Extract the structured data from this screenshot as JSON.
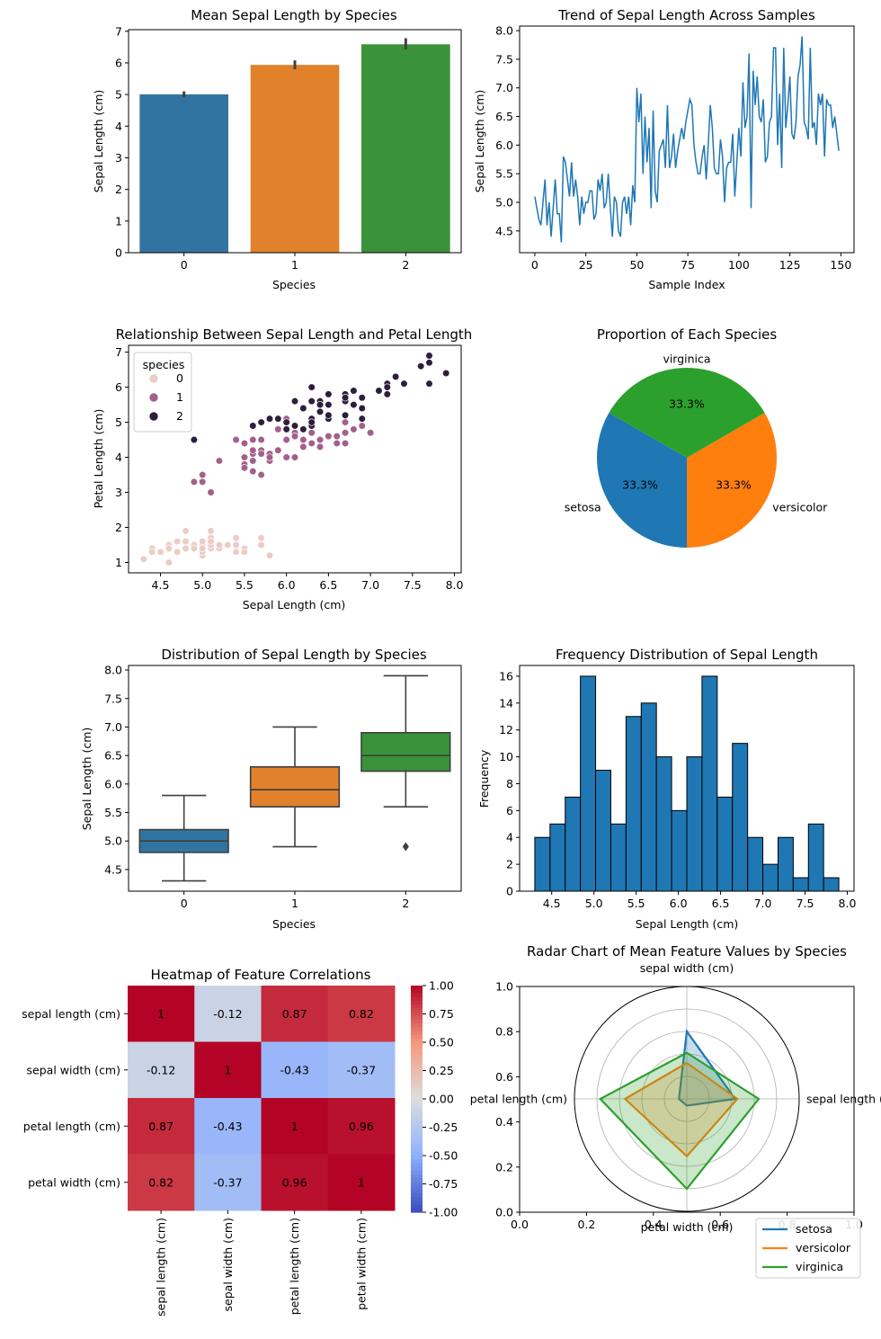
{
  "figure": {
    "colors": {
      "blue": "#1f77b4",
      "orange": "#ff7f0e",
      "green": "#2ca02c",
      "sea_blue": "#3274a1",
      "sea_orange": "#e1812c",
      "sea_green": "#3a923a"
    }
  },
  "chart_data": [
    {
      "id": "bar",
      "type": "bar",
      "title": "Mean Sepal Length by Species",
      "xlabel": "Species",
      "ylabel": "Sepal Length (cm)",
      "categories": [
        "0",
        "1",
        "2"
      ],
      "values": [
        5.006,
        5.936,
        6.588
      ],
      "error_low": [
        4.91,
        5.8,
        6.42
      ],
      "error_high": [
        5.1,
        6.08,
        6.78
      ],
      "ylim": [
        0,
        7.05
      ],
      "yticks": [
        0,
        1,
        2,
        3,
        4,
        5,
        6,
        7
      ]
    },
    {
      "id": "line",
      "type": "line",
      "title": "Trend of Sepal Length Across Samples",
      "xlabel": "Sample Index",
      "ylabel": "Sepal Length (cm)",
      "values": [
        5.1,
        4.9,
        4.7,
        4.6,
        5.0,
        5.4,
        4.6,
        5.0,
        4.4,
        4.9,
        5.4,
        4.8,
        4.8,
        4.3,
        5.8,
        5.7,
        5.4,
        5.1,
        5.7,
        5.1,
        5.4,
        5.1,
        4.6,
        5.1,
        4.8,
        5.0,
        5.0,
        5.2,
        5.2,
        4.7,
        4.8,
        5.4,
        5.2,
        5.5,
        4.9,
        5.0,
        5.5,
        4.9,
        4.4,
        5.1,
        5.0,
        4.5,
        4.4,
        5.0,
        5.1,
        4.8,
        5.1,
        4.6,
        5.3,
        5.0,
        7.0,
        6.4,
        6.9,
        5.5,
        6.5,
        5.7,
        6.3,
        4.9,
        6.6,
        5.2,
        5.0,
        5.9,
        6.0,
        6.1,
        5.6,
        6.7,
        5.6,
        5.8,
        6.2,
        5.6,
        5.9,
        6.1,
        6.3,
        6.1,
        6.4,
        6.6,
        6.8,
        6.7,
        6.0,
        5.7,
        5.5,
        5.5,
        5.8,
        6.0,
        5.4,
        6.0,
        6.7,
        6.3,
        5.6,
        5.5,
        5.5,
        6.1,
        5.8,
        5.0,
        5.6,
        5.7,
        5.7,
        6.2,
        5.1,
        5.7,
        6.3,
        5.8,
        7.1,
        6.3,
        6.5,
        7.6,
        4.9,
        7.3,
        6.7,
        7.2,
        6.5,
        6.4,
        6.8,
        5.7,
        5.8,
        6.4,
        6.5,
        7.7,
        7.7,
        6.0,
        6.9,
        5.6,
        7.7,
        6.3,
        6.7,
        7.2,
        6.2,
        6.1,
        6.4,
        7.2,
        7.4,
        7.9,
        6.4,
        6.3,
        6.1,
        7.7,
        6.3,
        6.4,
        6.0,
        6.9,
        6.7,
        6.9,
        5.8,
        6.8,
        6.7,
        6.7,
        6.3,
        6.5,
        6.2,
        5.9
      ],
      "xlim": [
        -7.45,
        156.45
      ],
      "ylim": [
        4.12,
        8.08
      ],
      "xticks": [
        0,
        25,
        50,
        75,
        100,
        125,
        150
      ],
      "yticks": [
        "4.5",
        "5.0",
        "5.5",
        "6.0",
        "6.5",
        "7.0",
        "7.5",
        "8.0"
      ]
    },
    {
      "id": "scatter",
      "type": "scatter",
      "title": "Relationship Between Sepal Length and Petal Length",
      "xlabel": "Sepal Length (cm)",
      "ylabel": "Petal Length (cm)",
      "legend_title": "species",
      "legend_placement": "top-left",
      "series": [
        {
          "name": "0",
          "color": "#ebcdc6",
          "points": [
            [
              5.1,
              1.4
            ],
            [
              4.9,
              1.4
            ],
            [
              4.7,
              1.3
            ],
            [
              4.6,
              1.5
            ],
            [
              5.0,
              1.4
            ],
            [
              5.4,
              1.7
            ],
            [
              4.6,
              1.4
            ],
            [
              5.0,
              1.5
            ],
            [
              4.4,
              1.4
            ],
            [
              4.9,
              1.5
            ],
            [
              5.4,
              1.5
            ],
            [
              4.8,
              1.6
            ],
            [
              4.8,
              1.4
            ],
            [
              4.3,
              1.1
            ],
            [
              5.8,
              1.2
            ],
            [
              5.7,
              1.5
            ],
            [
              5.4,
              1.3
            ],
            [
              5.1,
              1.4
            ],
            [
              5.7,
              1.7
            ],
            [
              5.1,
              1.5
            ],
            [
              5.4,
              1.7
            ],
            [
              5.1,
              1.5
            ],
            [
              4.6,
              1.0
            ],
            [
              5.1,
              1.7
            ],
            [
              4.8,
              1.9
            ],
            [
              5.0,
              1.6
            ],
            [
              5.0,
              1.6
            ],
            [
              5.2,
              1.5
            ],
            [
              5.2,
              1.4
            ],
            [
              4.7,
              1.6
            ],
            [
              4.8,
              1.6
            ],
            [
              5.4,
              1.5
            ],
            [
              5.2,
              1.5
            ],
            [
              5.5,
              1.4
            ],
            [
              4.9,
              1.5
            ],
            [
              5.0,
              1.2
            ],
            [
              5.5,
              1.3
            ],
            [
              4.9,
              1.4
            ],
            [
              4.4,
              1.3
            ],
            [
              5.1,
              1.5
            ],
            [
              5.0,
              1.3
            ],
            [
              4.5,
              1.3
            ],
            [
              4.4,
              1.3
            ],
            [
              5.0,
              1.6
            ],
            [
              5.1,
              1.9
            ],
            [
              4.8,
              1.4
            ],
            [
              5.1,
              1.6
            ],
            [
              4.6,
              1.4
            ],
            [
              5.3,
              1.5
            ],
            [
              5.0,
              1.4
            ]
          ]
        },
        {
          "name": "1",
          "color": "#a3608c",
          "points": [
            [
              7.0,
              4.7
            ],
            [
              6.4,
              4.5
            ],
            [
              6.9,
              4.9
            ],
            [
              5.5,
              4.0
            ],
            [
              6.5,
              4.6
            ],
            [
              5.7,
              4.5
            ],
            [
              6.3,
              4.7
            ],
            [
              4.9,
              3.3
            ],
            [
              6.6,
              4.6
            ],
            [
              5.2,
              3.9
            ],
            [
              5.0,
              3.5
            ],
            [
              5.9,
              4.2
            ],
            [
              6.0,
              4.0
            ],
            [
              6.1,
              4.7
            ],
            [
              5.6,
              3.6
            ],
            [
              6.7,
              4.4
            ],
            [
              5.6,
              4.5
            ],
            [
              5.8,
              4.1
            ],
            [
              6.2,
              4.5
            ],
            [
              5.6,
              3.9
            ],
            [
              5.9,
              4.8
            ],
            [
              6.1,
              4.0
            ],
            [
              6.3,
              4.9
            ],
            [
              6.1,
              4.7
            ],
            [
              6.4,
              4.3
            ],
            [
              6.6,
              4.4
            ],
            [
              6.8,
              4.8
            ],
            [
              6.7,
              5.0
            ],
            [
              6.0,
              4.5
            ],
            [
              5.7,
              3.5
            ],
            [
              5.5,
              3.8
            ],
            [
              5.5,
              3.7
            ],
            [
              5.8,
              3.9
            ],
            [
              6.0,
              5.1
            ],
            [
              5.4,
              4.5
            ],
            [
              6.0,
              4.5
            ],
            [
              6.7,
              4.7
            ],
            [
              6.3,
              4.4
            ],
            [
              5.6,
              4.1
            ],
            [
              5.5,
              4.0
            ],
            [
              5.5,
              4.4
            ],
            [
              6.1,
              4.6
            ],
            [
              5.8,
              4.0
            ],
            [
              5.0,
              3.3
            ],
            [
              5.6,
              4.2
            ],
            [
              5.7,
              4.2
            ],
            [
              5.7,
              4.2
            ],
            [
              6.2,
              4.3
            ],
            [
              5.1,
              3.0
            ],
            [
              5.7,
              4.1
            ]
          ]
        },
        {
          "name": "2",
          "color": "#2d1e3e",
          "points": [
            [
              6.3,
              6.0
            ],
            [
              5.8,
              5.1
            ],
            [
              7.1,
              5.9
            ],
            [
              6.3,
              5.6
            ],
            [
              6.5,
              5.8
            ],
            [
              7.6,
              6.6
            ],
            [
              4.9,
              4.5
            ],
            [
              7.3,
              6.3
            ],
            [
              6.7,
              5.8
            ],
            [
              7.2,
              6.1
            ],
            [
              6.5,
              5.1
            ],
            [
              6.4,
              5.3
            ],
            [
              6.8,
              5.5
            ],
            [
              5.7,
              5.0
            ],
            [
              5.8,
              5.1
            ],
            [
              6.4,
              5.3
            ],
            [
              6.5,
              5.5
            ],
            [
              7.7,
              6.7
            ],
            [
              7.7,
              6.9
            ],
            [
              6.0,
              5.0
            ],
            [
              6.9,
              5.7
            ],
            [
              5.6,
              4.9
            ],
            [
              7.7,
              6.7
            ],
            [
              6.3,
              4.9
            ],
            [
              6.7,
              5.7
            ],
            [
              7.2,
              6.0
            ],
            [
              6.2,
              4.8
            ],
            [
              6.1,
              4.9
            ],
            [
              6.4,
              5.6
            ],
            [
              7.2,
              5.8
            ],
            [
              7.4,
              6.1
            ],
            [
              7.9,
              6.4
            ],
            [
              6.4,
              5.6
            ],
            [
              6.3,
              5.1
            ],
            [
              6.1,
              5.6
            ],
            [
              7.7,
              6.1
            ],
            [
              6.3,
              5.6
            ],
            [
              6.4,
              5.5
            ],
            [
              6.0,
              4.8
            ],
            [
              6.9,
              5.4
            ],
            [
              6.7,
              5.6
            ],
            [
              6.9,
              5.1
            ],
            [
              5.8,
              5.1
            ],
            [
              6.8,
              5.9
            ],
            [
              6.7,
              5.7
            ],
            [
              6.7,
              5.2
            ],
            [
              6.3,
              5.0
            ],
            [
              6.5,
              5.2
            ],
            [
              6.2,
              5.4
            ],
            [
              5.9,
              5.1
            ]
          ]
        }
      ],
      "xlim": [
        4.12,
        8.08
      ],
      "ylim": [
        0.705,
        7.195
      ],
      "xticks": [
        "4.5",
        "5.0",
        "5.5",
        "6.0",
        "6.5",
        "7.0",
        "7.5",
        "8.0"
      ],
      "yticks": [
        "1",
        "2",
        "3",
        "4",
        "5",
        "6",
        "7"
      ]
    },
    {
      "id": "pie",
      "type": "pie",
      "title": "Proportion of Each Species",
      "slices": [
        {
          "label": "setosa",
          "value": 33.3,
          "pct": "33.3%",
          "color": "#1f77b4"
        },
        {
          "label": "versicolor",
          "value": 33.3,
          "pct": "33.3%",
          "color": "#ff7f0e"
        },
        {
          "label": "virginica",
          "value": 33.3,
          "pct": "33.3%",
          "color": "#2ca02c"
        }
      ]
    },
    {
      "id": "box",
      "type": "box",
      "title": "Distribution of Sepal Length by Species",
      "xlabel": "Species",
      "ylabel": "Sepal Length (cm)",
      "categories": [
        "0",
        "1",
        "2"
      ],
      "boxes": [
        {
          "whisker_low": 4.3,
          "q1": 4.8,
          "median": 5.0,
          "q3": 5.2,
          "whisker_high": 5.8,
          "outliers": [],
          "color": "#3274a1"
        },
        {
          "whisker_low": 4.9,
          "q1": 5.6,
          "median": 5.9,
          "q3": 6.3,
          "whisker_high": 7.0,
          "outliers": [],
          "color": "#e1812c"
        },
        {
          "whisker_low": 5.6,
          "q1": 6.225,
          "median": 6.5,
          "q3": 6.9,
          "whisker_high": 7.9,
          "outliers": [
            4.9
          ],
          "color": "#3a923a"
        }
      ],
      "ylim": [
        4.12,
        8.08
      ],
      "yticks": [
        "4.5",
        "5.0",
        "5.5",
        "6.0",
        "6.5",
        "7.0",
        "7.5",
        "8.0"
      ]
    },
    {
      "id": "hist",
      "type": "histogram",
      "title": "Frequency Distribution of Sepal Length",
      "xlabel": "Sepal Length (cm)",
      "ylabel": "Frequency",
      "bin_start": 4.3,
      "bin_width": 0.18,
      "counts": [
        4,
        5,
        7,
        16,
        9,
        5,
        13,
        14,
        10,
        6,
        10,
        16,
        7,
        11,
        4,
        2,
        4,
        1,
        5,
        1
      ],
      "xlim": [
        4.12,
        8.08
      ],
      "ylim": [
        0,
        16.8
      ],
      "xticks": [
        "4.5",
        "5.0",
        "5.5",
        "6.0",
        "6.5",
        "7.0",
        "7.5",
        "8.0"
      ],
      "yticks": [
        0,
        2,
        4,
        6,
        8,
        10,
        12,
        14,
        16
      ]
    },
    {
      "id": "heatmap",
      "type": "heatmap",
      "title": "Heatmap of Feature Correlations",
      "labels": [
        "sepal length (cm)",
        "sepal width (cm)",
        "petal length (cm)",
        "petal width (cm)"
      ],
      "matrix": [
        [
          1,
          -0.12,
          0.87,
          0.82
        ],
        [
          -0.12,
          1,
          -0.43,
          -0.37
        ],
        [
          0.87,
          -0.43,
          1,
          0.96
        ],
        [
          0.82,
          -0.37,
          0.96,
          1
        ]
      ],
      "annotations": [
        [
          "1",
          "-0.12",
          "0.87",
          "0.82"
        ],
        [
          "-0.12",
          "1",
          "-0.43",
          "-0.37"
        ],
        [
          "0.87",
          "-0.43",
          "1",
          "0.96"
        ],
        [
          "0.82",
          "-0.37",
          "0.96",
          "1"
        ]
      ],
      "colormap": "coolwarm",
      "vmin": -1,
      "vmax": 1,
      "colorbar_ticks": [
        "1.00",
        "0.75",
        "0.50",
        "0.25",
        "0.00",
        "-0.25",
        "-0.50",
        "-0.75",
        "-1.00"
      ]
    },
    {
      "id": "radar",
      "type": "radar",
      "title": "Radar Chart of Mean Feature Values by Species",
      "axes": [
        "sepal length (cm)",
        "sepal width (cm)",
        "petal length (cm)",
        "petal width (cm)"
      ],
      "series": [
        {
          "name": "setosa",
          "color": "#1f77b4",
          "values": [
            0.43,
            0.6,
            0.07,
            0.06
          ]
        },
        {
          "name": "versicolor",
          "color": "#ff7f0e",
          "values": [
            0.45,
            0.32,
            0.55,
            0.51
          ]
        },
        {
          "name": "virginica",
          "color": "#2ca02c",
          "values": [
            0.64,
            0.41,
            0.77,
            0.8
          ]
        }
      ],
      "cartesian_ticks": [
        "0.0",
        "0.2",
        "0.4",
        "0.6",
        "0.8",
        "1.0"
      ],
      "legend_placement": "lower-right"
    }
  ]
}
